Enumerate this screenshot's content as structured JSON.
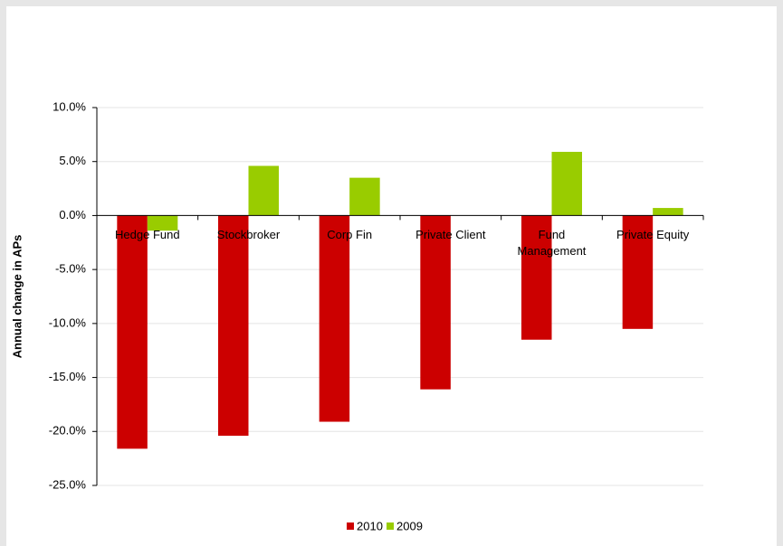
{
  "chart_data": {
    "type": "bar",
    "y_label": "Annual change in APs",
    "categories": [
      "Hedge Fund",
      "Stockbroker",
      "Corp Fin",
      "Private Client",
      "Fund Management",
      "Private Equity"
    ],
    "series": [
      {
        "name": "2010",
        "color": "#cc0000",
        "values": [
          -21.6,
          -20.4,
          -19.1,
          -16.1,
          -11.5,
          -10.5
        ]
      },
      {
        "name": "2009",
        "color": "#99cc00",
        "values": [
          -1.4,
          4.6,
          3.5,
          0,
          5.9,
          0.7
        ]
      }
    ],
    "ylim": [
      -25,
      10
    ],
    "yticks": [
      {
        "value": -25,
        "label": "-25.0%"
      },
      {
        "value": -20,
        "label": "-20.0%"
      },
      {
        "value": -15,
        "label": "-15.0%"
      },
      {
        "value": -10,
        "label": "-10.0%"
      },
      {
        "value": -5,
        "label": "-5.0%"
      },
      {
        "value": 0,
        "label": "0.0%"
      },
      {
        "value": 5,
        "label": "5.0%"
      },
      {
        "value": 10,
        "label": "10.0%"
      }
    ],
    "grid": true,
    "legend": "bottom"
  }
}
